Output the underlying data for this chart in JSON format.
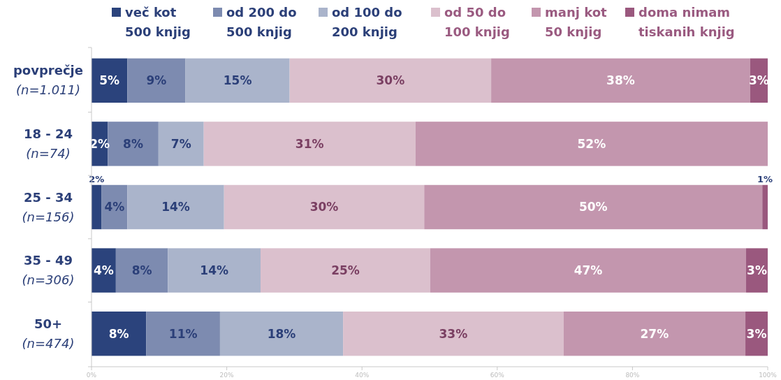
{
  "chart_data": {
    "type": "bar",
    "orientation": "horizontal",
    "stacked": true,
    "categories": [
      "povprečje\n(n=1.011)",
      "18 - 24\n(n=74)",
      "25 - 34\n(n=156)",
      "35 - 49\n(n=306)",
      "50+\n(n=474)"
    ],
    "series": [
      {
        "name": "več kot\n500 knjig",
        "color": "#2b437c",
        "values": [
          5.3,
          2.4,
          1.5,
          3.6,
          8.1
        ],
        "value_labels": [
          "5%",
          "2%",
          "2%",
          "4%",
          "8%"
        ]
      },
      {
        "name": "od 200 do\n500 knjig",
        "color": "#7d8bb0",
        "values": [
          8.6,
          7.5,
          3.8,
          7.7,
          10.9
        ],
        "value_labels": [
          "9%",
          "8%",
          "4%",
          "8%",
          "11%"
        ]
      },
      {
        "name": "od 100 do\n200 knjig",
        "color": "#aab4cb",
        "values": [
          15.4,
          6.7,
          14.3,
          13.7,
          18.2
        ],
        "value_labels": [
          "15%",
          "7%",
          "14%",
          "14%",
          "18%"
        ]
      },
      {
        "name": "od 50 do\n100 knjig",
        "color": "#dbc0cd",
        "values": [
          29.8,
          31.3,
          29.6,
          25.1,
          32.6
        ],
        "value_labels": [
          "30%",
          "31%",
          "30%",
          "25%",
          "33%"
        ]
      },
      {
        "name": "manj kot\n50 knjig",
        "color": "#c396ae",
        "values": [
          38.3,
          52.1,
          50.0,
          46.7,
          26.9
        ],
        "value_labels": [
          "38%",
          "52%",
          "50%",
          "47%",
          "27%"
        ]
      },
      {
        "name": "doma nimam\ntiskanih knjig",
        "color": "#9a587e",
        "values": [
          2.6,
          null,
          0.8,
          3.2,
          3.3
        ],
        "value_labels": [
          "3%",
          null,
          "1%",
          "3%",
          "3%"
        ]
      }
    ],
    "xlim": [
      0,
      100
    ],
    "xticks": [
      {
        "value": 0,
        "label": "0%"
      },
      {
        "value": 20,
        "label": "20%"
      },
      {
        "value": 40,
        "label": "40%"
      },
      {
        "value": 60,
        "label": "60%"
      },
      {
        "value": 80,
        "label": "80%"
      },
      {
        "value": 100,
        "label": "100%"
      }
    ],
    "grid": false,
    "legend": "top"
  }
}
